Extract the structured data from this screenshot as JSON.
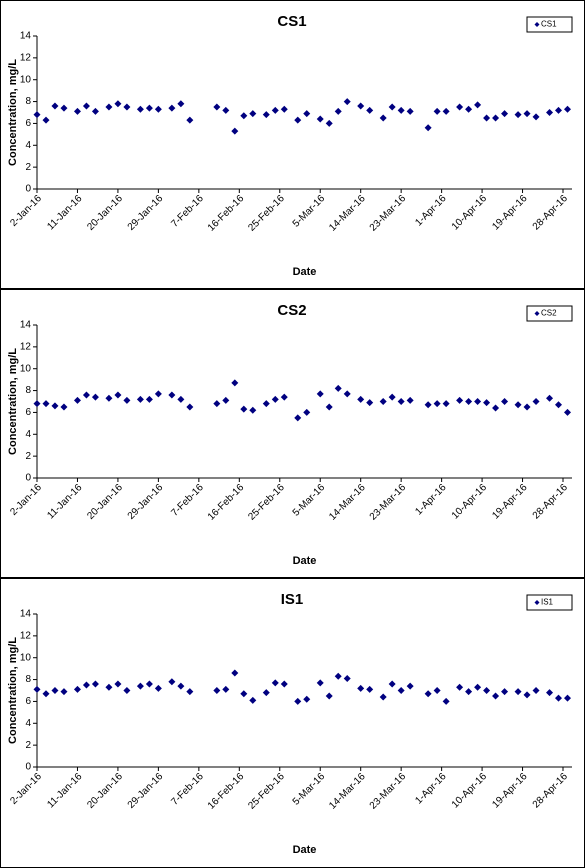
{
  "chart_data": [
    {
      "type": "scatter",
      "title": "CS1",
      "x_label": "Date",
      "y_label": "Concentration, mg/L",
      "x": [
        "2016-01-02",
        "2016-01-04",
        "2016-01-06",
        "2016-01-08",
        "2016-01-11",
        "2016-01-13",
        "2016-01-15",
        "2016-01-18",
        "2016-01-20",
        "2016-01-22",
        "2016-01-25",
        "2016-01-27",
        "2016-01-29",
        "2016-02-01",
        "2016-02-03",
        "2016-02-05",
        "2016-02-11",
        "2016-02-13",
        "2016-02-15",
        "2016-02-17",
        "2016-02-19",
        "2016-02-22",
        "2016-02-24",
        "2016-02-26",
        "2016-02-29",
        "2016-03-02",
        "2016-03-05",
        "2016-03-07",
        "2016-03-09",
        "2016-03-11",
        "2016-03-14",
        "2016-03-16",
        "2016-03-19",
        "2016-03-21",
        "2016-03-23",
        "2016-03-25",
        "2016-03-29",
        "2016-03-31",
        "2016-04-02",
        "2016-04-05",
        "2016-04-07",
        "2016-04-09",
        "2016-04-11",
        "2016-04-13",
        "2016-04-15",
        "2016-04-18",
        "2016-04-20",
        "2016-04-22",
        "2016-04-25",
        "2016-04-27",
        "2016-04-29"
      ],
      "series": [
        {
          "name": "CS1",
          "color": "#000080",
          "values": [
            6.8,
            6.3,
            7.6,
            7.4,
            7.1,
            7.6,
            7.1,
            7.5,
            7.8,
            7.5,
            7.3,
            7.4,
            7.3,
            7.4,
            7.8,
            6.3,
            7.5,
            7.2,
            5.3,
            6.7,
            6.9,
            6.8,
            7.2,
            7.3,
            6.3,
            6.9,
            6.4,
            6.0,
            7.1,
            8.0,
            7.6,
            7.2,
            6.5,
            7.5,
            7.2,
            7.1,
            5.6,
            7.1,
            7.1,
            7.5,
            7.3,
            7.7,
            6.5,
            6.5,
            6.9,
            6.8,
            6.9,
            6.6,
            7.0,
            7.2,
            7.3
          ]
        }
      ],
      "xlim": [
        "2016-01-02",
        "2016-04-30"
      ],
      "xticks": [
        {
          "value": "2016-01-02",
          "label": "2-Jan-16"
        },
        {
          "value": "2016-01-11",
          "label": "11-Jan-16"
        },
        {
          "value": "2016-01-20",
          "label": "20-Jan-16"
        },
        {
          "value": "2016-01-29",
          "label": "29-Jan-16"
        },
        {
          "value": "2016-02-07",
          "label": "7-Feb-16"
        },
        {
          "value": "2016-02-16",
          "label": "16-Feb-16"
        },
        {
          "value": "2016-02-25",
          "label": "25-Feb-16"
        },
        {
          "value": "2016-03-05",
          "label": "5-Mar-16"
        },
        {
          "value": "2016-03-14",
          "label": "14-Mar-16"
        },
        {
          "value": "2016-03-23",
          "label": "23-Mar-16"
        },
        {
          "value": "2016-04-01",
          "label": "1-Apr-16"
        },
        {
          "value": "2016-04-10",
          "label": "10-Apr-16"
        },
        {
          "value": "2016-04-19",
          "label": "19-Apr-16"
        },
        {
          "value": "2016-04-28",
          "label": "28-Apr-16"
        }
      ],
      "ylim": [
        0,
        14
      ],
      "yticks": [
        0,
        2,
        4,
        6,
        8,
        10,
        12,
        14
      ],
      "legend": "upper right"
    },
    {
      "type": "scatter",
      "title": "CS2",
      "x_label": "Date",
      "y_label": "Concentration, mg/L",
      "x": [
        "2016-01-02",
        "2016-01-04",
        "2016-01-06",
        "2016-01-08",
        "2016-01-11",
        "2016-01-13",
        "2016-01-15",
        "2016-01-18",
        "2016-01-20",
        "2016-01-22",
        "2016-01-25",
        "2016-01-27",
        "2016-01-29",
        "2016-02-01",
        "2016-02-03",
        "2016-02-05",
        "2016-02-11",
        "2016-02-13",
        "2016-02-15",
        "2016-02-17",
        "2016-02-19",
        "2016-02-22",
        "2016-02-24",
        "2016-02-26",
        "2016-02-29",
        "2016-03-02",
        "2016-03-05",
        "2016-03-07",
        "2016-03-09",
        "2016-03-11",
        "2016-03-14",
        "2016-03-16",
        "2016-03-19",
        "2016-03-21",
        "2016-03-23",
        "2016-03-25",
        "2016-03-29",
        "2016-03-31",
        "2016-04-02",
        "2016-04-05",
        "2016-04-07",
        "2016-04-09",
        "2016-04-11",
        "2016-04-13",
        "2016-04-15",
        "2016-04-18",
        "2016-04-20",
        "2016-04-22",
        "2016-04-25",
        "2016-04-27",
        "2016-04-29"
      ],
      "series": [
        {
          "name": "CS2",
          "color": "#000080",
          "values": [
            6.8,
            6.8,
            6.6,
            6.5,
            7.1,
            7.6,
            7.4,
            7.3,
            7.6,
            7.1,
            7.2,
            7.2,
            7.7,
            7.6,
            7.2,
            6.5,
            6.8,
            7.1,
            8.7,
            6.3,
            6.2,
            6.8,
            7.2,
            7.4,
            5.5,
            6.0,
            7.7,
            6.5,
            8.2,
            7.7,
            7.2,
            6.9,
            7.0,
            7.4,
            7.0,
            7.1,
            6.7,
            6.8,
            6.8,
            7.1,
            7.0,
            7.0,
            6.9,
            6.4,
            7.0,
            6.7,
            6.5,
            7.0,
            7.3,
            6.7,
            6.0
          ]
        }
      ],
      "xlim": [
        "2016-01-02",
        "2016-04-30"
      ],
      "xticks": [
        {
          "value": "2016-01-02",
          "label": "2-Jan-16"
        },
        {
          "value": "2016-01-11",
          "label": "11-Jan-16"
        },
        {
          "value": "2016-01-20",
          "label": "20-Jan-16"
        },
        {
          "value": "2016-01-29",
          "label": "29-Jan-16"
        },
        {
          "value": "2016-02-07",
          "label": "7-Feb-16"
        },
        {
          "value": "2016-02-16",
          "label": "16-Feb-16"
        },
        {
          "value": "2016-02-25",
          "label": "25-Feb-16"
        },
        {
          "value": "2016-03-05",
          "label": "5-Mar-16"
        },
        {
          "value": "2016-03-14",
          "label": "14-Mar-16"
        },
        {
          "value": "2016-03-23",
          "label": "23-Mar-16"
        },
        {
          "value": "2016-04-01",
          "label": "1-Apr-16"
        },
        {
          "value": "2016-04-10",
          "label": "10-Apr-16"
        },
        {
          "value": "2016-04-19",
          "label": "19-Apr-16"
        },
        {
          "value": "2016-04-28",
          "label": "28-Apr-16"
        }
      ],
      "ylim": [
        0,
        14
      ],
      "yticks": [
        0,
        2,
        4,
        6,
        8,
        10,
        12,
        14
      ],
      "legend": "upper right"
    },
    {
      "type": "scatter",
      "title": "IS1",
      "x_label": "Date",
      "y_label": "Concentration, mg/L",
      "x": [
        "2016-01-02",
        "2016-01-04",
        "2016-01-06",
        "2016-01-08",
        "2016-01-11",
        "2016-01-13",
        "2016-01-15",
        "2016-01-18",
        "2016-01-20",
        "2016-01-22",
        "2016-01-25",
        "2016-01-27",
        "2016-01-29",
        "2016-02-01",
        "2016-02-03",
        "2016-02-05",
        "2016-02-11",
        "2016-02-13",
        "2016-02-15",
        "2016-02-17",
        "2016-02-19",
        "2016-02-22",
        "2016-02-24",
        "2016-02-26",
        "2016-02-29",
        "2016-03-02",
        "2016-03-05",
        "2016-03-07",
        "2016-03-09",
        "2016-03-11",
        "2016-03-14",
        "2016-03-16",
        "2016-03-19",
        "2016-03-21",
        "2016-03-23",
        "2016-03-25",
        "2016-03-29",
        "2016-03-31",
        "2016-04-02",
        "2016-04-05",
        "2016-04-07",
        "2016-04-09",
        "2016-04-11",
        "2016-04-13",
        "2016-04-15",
        "2016-04-18",
        "2016-04-20",
        "2016-04-22",
        "2016-04-25",
        "2016-04-27",
        "2016-04-29"
      ],
      "series": [
        {
          "name": "IS1",
          "color": "#000080",
          "values": [
            7.1,
            6.7,
            7.0,
            6.9,
            7.1,
            7.5,
            7.6,
            7.3,
            7.6,
            7.0,
            7.4,
            7.6,
            7.2,
            7.8,
            7.4,
            6.9,
            7.0,
            7.1,
            8.6,
            6.7,
            6.1,
            6.8,
            7.7,
            7.6,
            6.0,
            6.2,
            7.7,
            6.5,
            8.3,
            8.1,
            7.2,
            7.1,
            6.4,
            7.6,
            7.0,
            7.4,
            6.7,
            7.0,
            6.0,
            7.3,
            6.9,
            7.3,
            7.0,
            6.5,
            6.9,
            6.9,
            6.6,
            7.0,
            6.8,
            6.3,
            6.3
          ]
        }
      ],
      "xlim": [
        "2016-01-02",
        "2016-04-30"
      ],
      "xticks": [
        {
          "value": "2016-01-02",
          "label": "2-Jan-16"
        },
        {
          "value": "2016-01-11",
          "label": "11-Jan-16"
        },
        {
          "value": "2016-01-20",
          "label": "20-Jan-16"
        },
        {
          "value": "2016-01-29",
          "label": "29-Jan-16"
        },
        {
          "value": "2016-02-07",
          "label": "7-Feb-16"
        },
        {
          "value": "2016-02-16",
          "label": "16-Feb-16"
        },
        {
          "value": "2016-02-25",
          "label": "25-Feb-16"
        },
        {
          "value": "2016-03-05",
          "label": "5-Mar-16"
        },
        {
          "value": "2016-03-14",
          "label": "14-Mar-16"
        },
        {
          "value": "2016-03-23",
          "label": "23-Mar-16"
        },
        {
          "value": "2016-04-01",
          "label": "1-Apr-16"
        },
        {
          "value": "2016-04-10",
          "label": "10-Apr-16"
        },
        {
          "value": "2016-04-19",
          "label": "19-Apr-16"
        },
        {
          "value": "2016-04-28",
          "label": "28-Apr-16"
        }
      ],
      "ylim": [
        0,
        14
      ],
      "yticks": [
        0,
        2,
        4,
        6,
        8,
        10,
        12,
        14
      ],
      "legend": "upper right"
    }
  ]
}
